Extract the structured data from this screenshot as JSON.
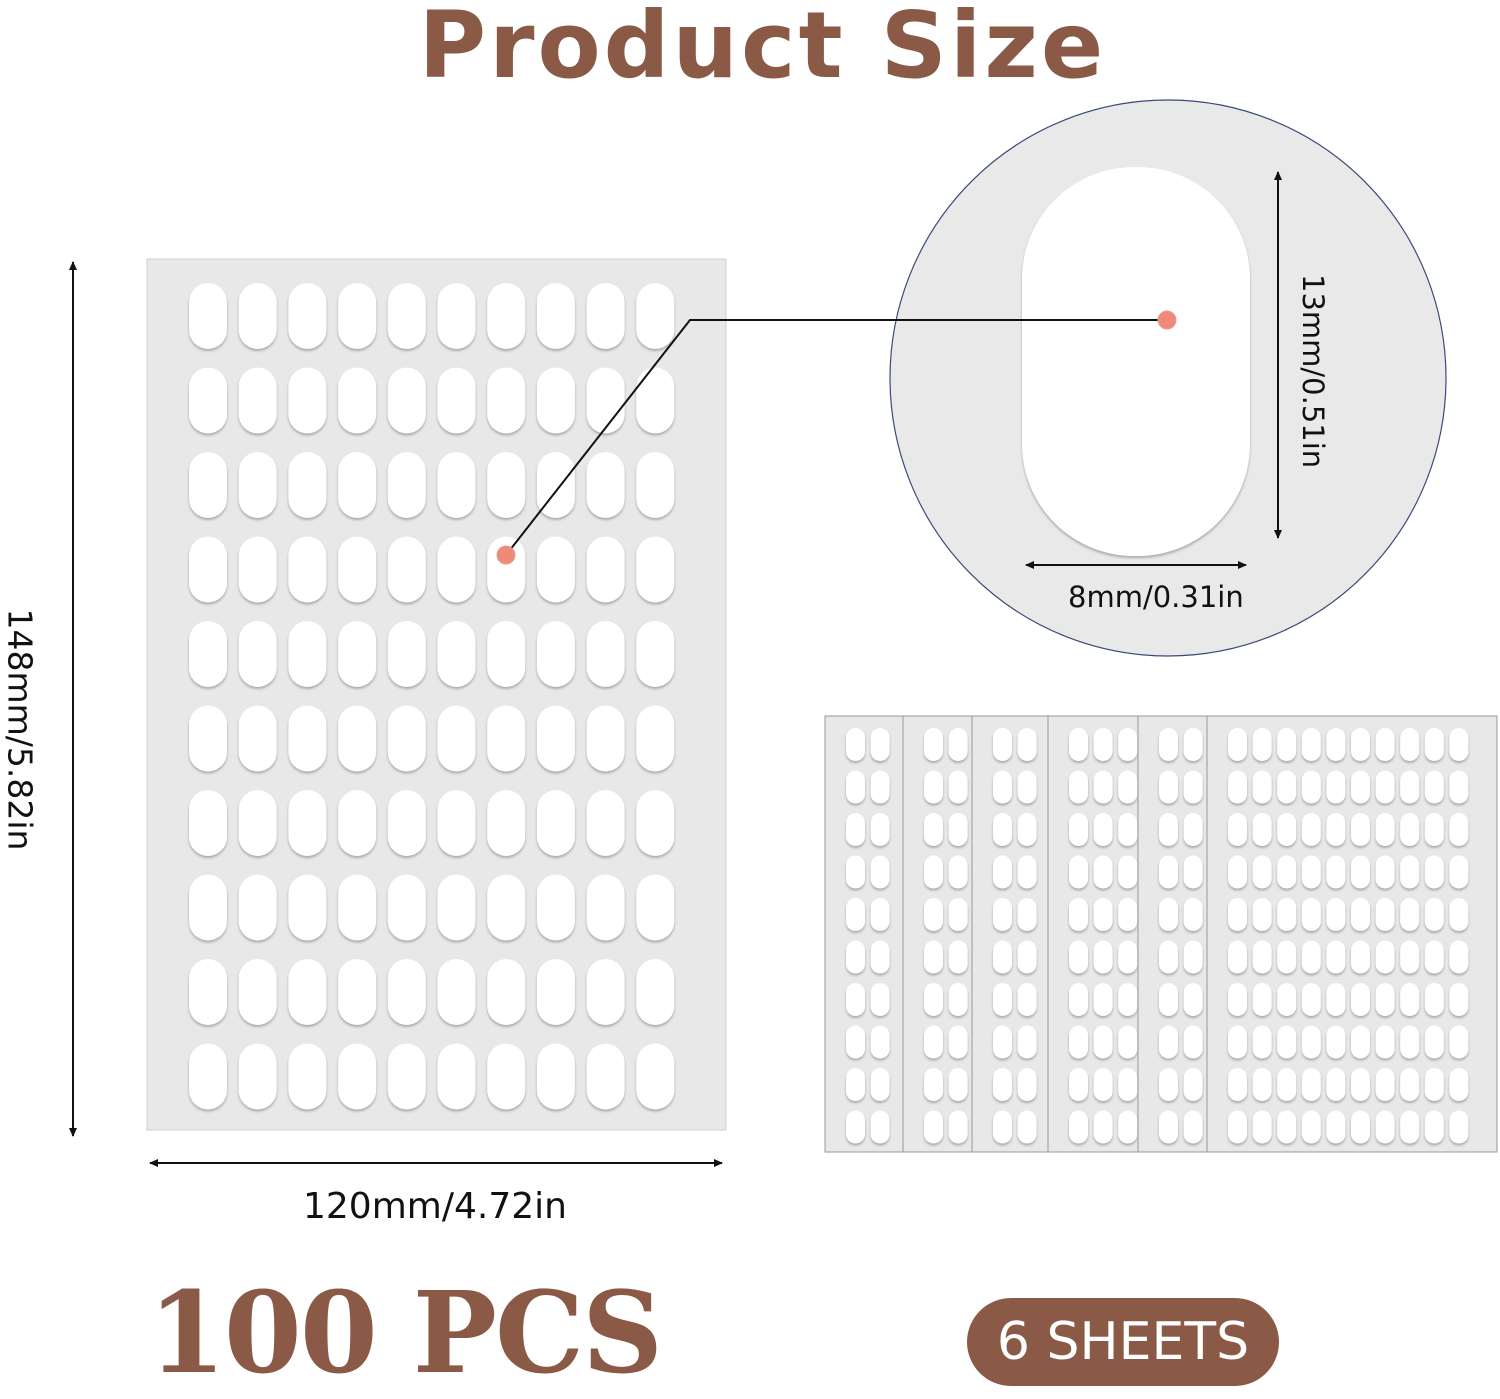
{
  "title": "Product Size",
  "dimensions": {
    "sheet_width": "120mm/4.72in",
    "sheet_height": "148mm/5.82in",
    "piece_height": "13mm/0.51in",
    "piece_width": "8mm/0.31in"
  },
  "quantity": "100 PCS",
  "sheets_badge": "6 SHEETS",
  "colors": {
    "brand": "#8b5a47",
    "sheet": "#e8e8e8",
    "marker": "#f08a78"
  }
}
